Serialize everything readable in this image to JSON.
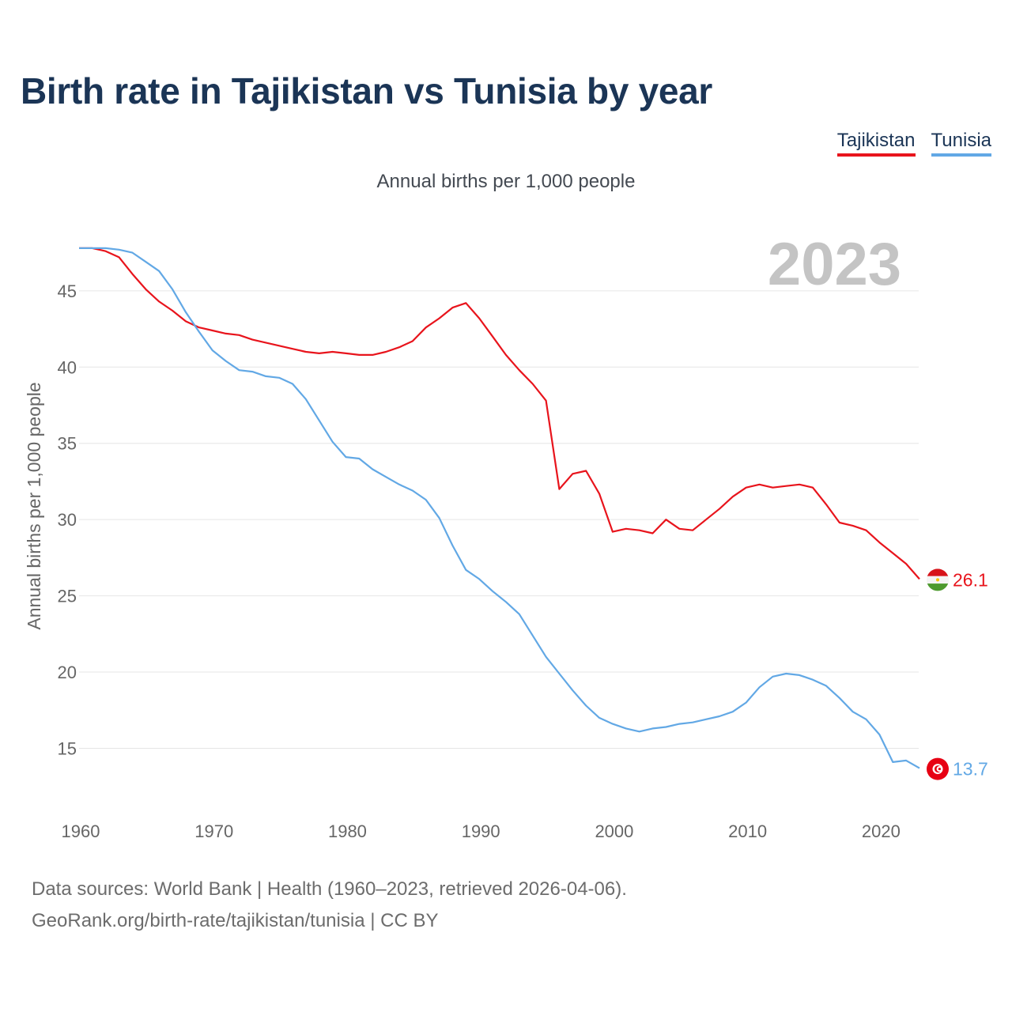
{
  "title": "Birth rate in Tajikistan vs Tunisia by year",
  "subtitle": "Annual births per 1,000 people",
  "legend": [
    {
      "name": "Tajikistan",
      "color": "#e8141c"
    },
    {
      "name": "Tunisia",
      "color": "#62a8e5"
    }
  ],
  "year_label": "2023",
  "footer": {
    "line1": "Data sources: World Bank | Health (1960–2023, retrieved 2026-04-06).",
    "line2": "GeoRank.org/birth-rate/tajikistan/tunisia | CC BY"
  },
  "end_labels": {
    "tajikistan": "26.1",
    "tunisia": "13.7"
  },
  "chart_data": {
    "type": "line",
    "title": "Birth rate in Tajikistan vs Tunisia by year",
    "xlabel": "",
    "ylabel": "Annual births per 1,000 people",
    "xlim": [
      1960,
      2023
    ],
    "ylim": [
      11.5,
      48
    ],
    "x_ticks": [
      1960,
      1970,
      1980,
      1990,
      2000,
      2010,
      2020
    ],
    "y_ticks": [
      15,
      20,
      25,
      30,
      35,
      40,
      45
    ],
    "grid": true,
    "x": [
      1960,
      1961,
      1962,
      1963,
      1964,
      1965,
      1966,
      1967,
      1968,
      1969,
      1970,
      1971,
      1972,
      1973,
      1974,
      1975,
      1976,
      1977,
      1978,
      1979,
      1980,
      1981,
      1982,
      1983,
      1984,
      1985,
      1986,
      1987,
      1988,
      1989,
      1990,
      1991,
      1992,
      1993,
      1994,
      1995,
      1996,
      1997,
      1998,
      1999,
      2000,
      2001,
      2002,
      2003,
      2004,
      2005,
      2006,
      2007,
      2008,
      2009,
      2010,
      2011,
      2012,
      2013,
      2014,
      2015,
      2016,
      2017,
      2018,
      2019,
      2020,
      2021,
      2022,
      2023
    ],
    "series": [
      {
        "name": "Tajikistan",
        "color": "#e8141c",
        "values": [
          47.8,
          47.8,
          47.6,
          47.2,
          46.1,
          45.1,
          44.3,
          43.7,
          43.0,
          42.6,
          42.4,
          42.2,
          42.1,
          41.8,
          41.6,
          41.4,
          41.2,
          41.0,
          40.9,
          41.0,
          40.9,
          40.8,
          40.8,
          41.0,
          41.3,
          41.7,
          42.6,
          43.2,
          43.9,
          44.2,
          43.2,
          42.0,
          40.8,
          39.8,
          38.9,
          37.8,
          32.0,
          33.0,
          33.2,
          31.7,
          29.2,
          29.4,
          29.3,
          29.1,
          30.0,
          29.4,
          29.3,
          30.0,
          30.7,
          31.5,
          32.1,
          32.3,
          32.1,
          32.2,
          32.3,
          32.1,
          31.0,
          29.8,
          29.6,
          29.3,
          28.5,
          27.8,
          27.1,
          26.1
        ]
      },
      {
        "name": "Tunisia",
        "color": "#62a8e5",
        "values": [
          47.8,
          47.8,
          47.8,
          47.7,
          47.5,
          46.9,
          46.3,
          45.1,
          43.6,
          42.3,
          41.1,
          40.4,
          39.8,
          39.7,
          39.4,
          39.3,
          38.9,
          37.9,
          36.5,
          35.1,
          34.1,
          34.0,
          33.3,
          32.8,
          32.3,
          31.9,
          31.3,
          30.1,
          28.3,
          26.7,
          26.1,
          25.3,
          24.6,
          23.8,
          22.4,
          21.0,
          19.9,
          18.8,
          17.8,
          17.0,
          16.6,
          16.3,
          16.1,
          16.3,
          16.4,
          16.6,
          16.7,
          16.9,
          17.1,
          17.4,
          18.0,
          19.0,
          19.7,
          19.9,
          19.8,
          19.5,
          19.1,
          18.3,
          17.4,
          16.9,
          15.9,
          14.1,
          14.2,
          13.7
        ]
      }
    ]
  }
}
